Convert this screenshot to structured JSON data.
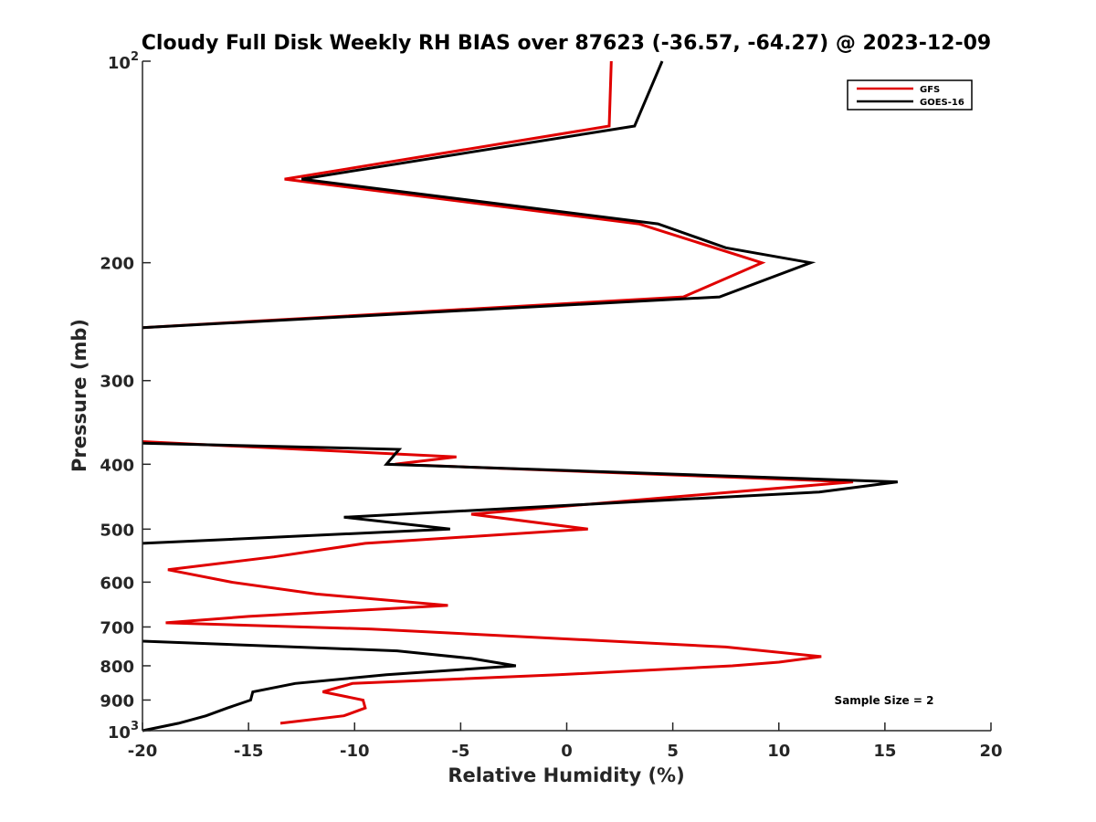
{
  "chart_data": {
    "type": "line",
    "title": "Cloudy Full Disk Weekly RH BIAS over 87623 (-36.57, -64.27) @ 2023-12-09",
    "xlabel": "Relative Humidity (%)",
    "ylabel": "Pressure (mb)",
    "xlim": [
      -20,
      20
    ],
    "ylim": [
      100,
      1000
    ],
    "y_scale": "log",
    "y_reversed": true,
    "x_ticks": [
      -20,
      -15,
      -10,
      -5,
      0,
      5,
      10,
      15,
      20
    ],
    "x_tick_labels": [
      "-20",
      "-15",
      "-10",
      "-5",
      "0",
      "5",
      "10",
      "15",
      "20"
    ],
    "y_ticks": [
      200,
      300,
      400,
      500,
      600,
      700,
      800,
      900
    ],
    "y_tick_labels": [
      "200",
      "300",
      "400",
      "500",
      "600",
      "700",
      "800",
      "900"
    ],
    "y_end_ticks": [
      {
        "value": 100,
        "base": "10",
        "exp": "2"
      },
      {
        "value": 1000,
        "base": "10",
        "exp": "3"
      }
    ],
    "grid": false,
    "legend_position": "top-right",
    "annotation": "Sample Size = 2",
    "series": [
      {
        "name": "GFS",
        "color": "#e00000",
        "segments": [
          [
            [
              2.1,
              100
            ],
            [
              2.0,
              125
            ],
            [
              -13.3,
              150
            ],
            [
              3.4,
              175
            ],
            [
              9.2,
              200
            ],
            [
              5.5,
              225
            ],
            [
              -15.2,
              245
            ],
            [
              -20.0,
              250
            ]
          ],
          [
            [
              -20.0,
              370
            ],
            [
              -5.2,
              390
            ],
            [
              -8.1,
              400
            ],
            [
              13.5,
              425
            ],
            [
              4.2,
              450
            ],
            [
              -4.5,
              475
            ],
            [
              1.0,
              500
            ],
            [
              -9.5,
              525
            ],
            [
              -13.8,
              550
            ],
            [
              -18.8,
              575
            ],
            [
              -15.8,
              600
            ],
            [
              -11.8,
              625
            ],
            [
              -5.6,
              650
            ],
            [
              -15.0,
              675
            ],
            [
              -18.9,
              690
            ],
            [
              -9.2,
              705
            ],
            [
              7.5,
              750
            ],
            [
              12.0,
              775
            ],
            [
              10.0,
              790
            ],
            [
              7.8,
              800
            ],
            [
              -0.4,
              825
            ],
            [
              -10.1,
              850
            ],
            [
              -11.5,
              875
            ],
            [
              -9.6,
              900
            ],
            [
              -9.5,
              925
            ],
            [
              -10.5,
              950
            ],
            [
              -13.5,
              975
            ]
          ]
        ]
      },
      {
        "name": "GOES-16",
        "color": "#000000",
        "segments": [
          [
            [
              4.5,
              100
            ],
            [
              3.2,
              125
            ],
            [
              -12.5,
              150
            ],
            [
              4.3,
              175
            ],
            [
              7.5,
              190
            ],
            [
              11.5,
              200
            ],
            [
              7.2,
              225
            ],
            [
              -20.0,
              250
            ]
          ],
          [
            [
              -20.0,
              372
            ],
            [
              -7.9,
              380
            ],
            [
              -8.5,
              400
            ],
            [
              15.6,
              425
            ],
            [
              11.9,
              440
            ],
            [
              -10.5,
              480
            ],
            [
              -5.5,
              500
            ],
            [
              -20.0,
              525
            ]
          ],
          [
            [
              -20.0,
              735
            ],
            [
              -8.0,
              760
            ],
            [
              -4.5,
              780
            ],
            [
              -2.4,
              800
            ],
            [
              -8.5,
              825
            ],
            [
              -12.8,
              850
            ],
            [
              -14.8,
              875
            ],
            [
              -14.9,
              900
            ],
            [
              -16.0,
              925
            ],
            [
              -17.0,
              950
            ],
            [
              -18.3,
              975
            ],
            [
              -20.0,
              1000
            ]
          ]
        ]
      }
    ]
  }
}
